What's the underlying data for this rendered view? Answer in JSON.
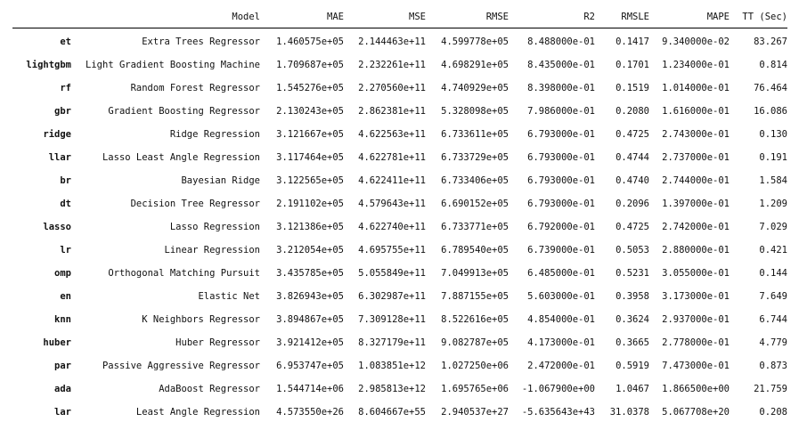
{
  "table": {
    "index_header": "",
    "columns": [
      "Model",
      "MAE",
      "MSE",
      "RMSE",
      "R2",
      "RMSLE",
      "MAPE",
      "TT (Sec)"
    ],
    "rows": [
      {
        "id": "et",
        "cells": [
          "Extra Trees Regressor",
          "1.460575e+05",
          "2.144463e+11",
          "4.599778e+05",
          "8.488000e-01",
          "0.1417",
          "9.340000e-02",
          "83.267"
        ]
      },
      {
        "id": "lightgbm",
        "cells": [
          "Light Gradient Boosting Machine",
          "1.709687e+05",
          "2.232261e+11",
          "4.698291e+05",
          "8.435000e-01",
          "0.1701",
          "1.234000e-01",
          "0.814"
        ]
      },
      {
        "id": "rf",
        "cells": [
          "Random Forest Regressor",
          "1.545276e+05",
          "2.270560e+11",
          "4.740929e+05",
          "8.398000e-01",
          "0.1519",
          "1.014000e-01",
          "76.464"
        ]
      },
      {
        "id": "gbr",
        "cells": [
          "Gradient Boosting Regressor",
          "2.130243e+05",
          "2.862381e+11",
          "5.328098e+05",
          "7.986000e-01",
          "0.2080",
          "1.616000e-01",
          "16.086"
        ]
      },
      {
        "id": "ridge",
        "cells": [
          "Ridge Regression",
          "3.121667e+05",
          "4.622563e+11",
          "6.733611e+05",
          "6.793000e-01",
          "0.4725",
          "2.743000e-01",
          "0.130"
        ]
      },
      {
        "id": "llar",
        "cells": [
          "Lasso Least Angle Regression",
          "3.117464e+05",
          "4.622781e+11",
          "6.733729e+05",
          "6.793000e-01",
          "0.4744",
          "2.737000e-01",
          "0.191"
        ]
      },
      {
        "id": "br",
        "cells": [
          "Bayesian Ridge",
          "3.122565e+05",
          "4.622411e+11",
          "6.733406e+05",
          "6.793000e-01",
          "0.4740",
          "2.744000e-01",
          "1.584"
        ]
      },
      {
        "id": "dt",
        "cells": [
          "Decision Tree Regressor",
          "2.191102e+05",
          "4.579643e+11",
          "6.690152e+05",
          "6.793000e-01",
          "0.2096",
          "1.397000e-01",
          "1.209"
        ]
      },
      {
        "id": "lasso",
        "cells": [
          "Lasso Regression",
          "3.121386e+05",
          "4.622740e+11",
          "6.733771e+05",
          "6.792000e-01",
          "0.4725",
          "2.742000e-01",
          "7.029"
        ]
      },
      {
        "id": "lr",
        "cells": [
          "Linear Regression",
          "3.212054e+05",
          "4.695755e+11",
          "6.789540e+05",
          "6.739000e-01",
          "0.5053",
          "2.880000e-01",
          "0.421"
        ]
      },
      {
        "id": "omp",
        "cells": [
          "Orthogonal Matching Pursuit",
          "3.435785e+05",
          "5.055849e+11",
          "7.049913e+05",
          "6.485000e-01",
          "0.5231",
          "3.055000e-01",
          "0.144"
        ]
      },
      {
        "id": "en",
        "cells": [
          "Elastic Net",
          "3.826943e+05",
          "6.302987e+11",
          "7.887155e+05",
          "5.603000e-01",
          "0.3958",
          "3.173000e-01",
          "7.649"
        ]
      },
      {
        "id": "knn",
        "cells": [
          "K Neighbors Regressor",
          "3.894867e+05",
          "7.309128e+11",
          "8.522616e+05",
          "4.854000e-01",
          "0.3624",
          "2.937000e-01",
          "6.744"
        ]
      },
      {
        "id": "huber",
        "cells": [
          "Huber Regressor",
          "3.921412e+05",
          "8.327179e+11",
          "9.082787e+05",
          "4.173000e-01",
          "0.3665",
          "2.778000e-01",
          "4.779"
        ]
      },
      {
        "id": "par",
        "cells": [
          "Passive Aggressive Regressor",
          "6.953747e+05",
          "1.083851e+12",
          "1.027250e+06",
          "2.472000e-01",
          "0.5919",
          "7.473000e-01",
          "0.873"
        ]
      },
      {
        "id": "ada",
        "cells": [
          "AdaBoost Regressor",
          "1.544714e+06",
          "2.985813e+12",
          "1.695765e+06",
          "-1.067900e+00",
          "1.0467",
          "1.866500e+00",
          "21.759"
        ]
      },
      {
        "id": "lar",
        "cells": [
          "Least Angle Regression",
          "4.573550e+26",
          "8.604667e+55",
          "2.940537e+27",
          "-5.635643e+43",
          "31.0378",
          "5.067708e+20",
          "0.208"
        ]
      }
    ]
  }
}
